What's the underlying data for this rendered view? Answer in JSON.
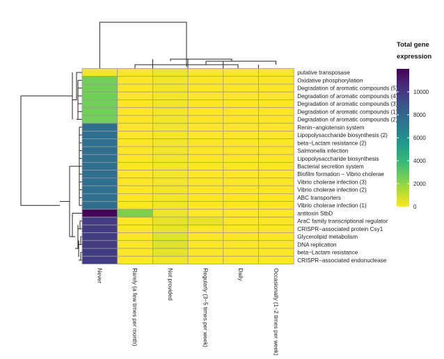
{
  "chart_data": {
    "type": "heatmap",
    "title": "",
    "legend": {
      "title_lines": [
        "Total gene",
        "expression"
      ],
      "ticks": [
        0,
        2000,
        4000,
        6000,
        8000,
        10000
      ],
      "range": [
        0,
        12000
      ],
      "colors": [
        "#FDE725",
        "#B4DE2C",
        "#6DCD59",
        "#35B779",
        "#1F9E89",
        "#26828E",
        "#31688E",
        "#3E4989",
        "#482878",
        "#440154"
      ],
      "placement": "right"
    },
    "columns": [
      "Never",
      "Rarely (a few times per month)",
      "Not provided",
      "Regularly (3~5 times per week)",
      "Daily",
      "Occasionally (1~2 times per week)"
    ],
    "rows": [
      "putative transposase",
      "Oxidative phosphorylation",
      "Degradation of aromatic compounds (5)",
      "Degradation of aromatic compounds (4)",
      "Degradation of aromatic compounds (3)",
      "Degradation of aromatic compounds (1)",
      "Degradation of aromatic compounds (2)",
      "Renin−angiotensin system",
      "Lipopolysaccharide biosynthesis (2)",
      "beta−Lactam resistance (2)",
      "Salmonella infection",
      "Lipopolysaccharide biosynthesis",
      "Bacterial secretion system",
      "Biofilm formation − Vibrio cholerae",
      "Vibrio cholerae infection (3)",
      "Vibrio cholerae infection (2)",
      "ABC transporters",
      "Vibrio cholerae infection (1)",
      "antitoxin StbD",
      "AraC family transcriptional regulator",
      "CRISPR−associated protein Csy1",
      "Glycerolipid metabolism",
      "DNA replication",
      "beta−Lactam resistance",
      "CRISPR−associated endonuclease"
    ],
    "values": [
      [
        200,
        0,
        300,
        0,
        0,
        0
      ],
      [
        2600,
        0,
        200,
        0,
        0,
        0
      ],
      [
        2600,
        0,
        200,
        0,
        0,
        0
      ],
      [
        2600,
        0,
        200,
        0,
        0,
        0
      ],
      [
        2600,
        0,
        200,
        0,
        0,
        0
      ],
      [
        2600,
        0,
        200,
        0,
        0,
        0
      ],
      [
        2600,
        0,
        200,
        0,
        0,
        0
      ],
      [
        7600,
        0,
        200,
        0,
        0,
        0
      ],
      [
        7600,
        0,
        200,
        0,
        0,
        0
      ],
      [
        7600,
        0,
        200,
        0,
        0,
        0
      ],
      [
        7600,
        0,
        200,
        0,
        0,
        0
      ],
      [
        7600,
        0,
        200,
        0,
        0,
        0
      ],
      [
        7600,
        0,
        200,
        0,
        0,
        0
      ],
      [
        7600,
        0,
        200,
        0,
        0,
        0
      ],
      [
        7600,
        0,
        200,
        0,
        0,
        0
      ],
      [
        7600,
        0,
        200,
        0,
        0,
        0
      ],
      [
        7600,
        0,
        200,
        0,
        0,
        0
      ],
      [
        7600,
        0,
        200,
        0,
        0,
        0
      ],
      [
        11900,
        2400,
        300,
        0,
        0,
        0
      ],
      [
        9800,
        0,
        400,
        400,
        0,
        0
      ],
      [
        9800,
        0,
        400,
        0,
        0,
        0
      ],
      [
        9800,
        0,
        600,
        0,
        0,
        0
      ],
      [
        9800,
        0,
        600,
        0,
        0,
        0
      ],
      [
        9800,
        0,
        500,
        0,
        0,
        0
      ],
      [
        9800,
        0,
        200,
        0,
        0,
        0
      ]
    ],
    "grid": true
  }
}
